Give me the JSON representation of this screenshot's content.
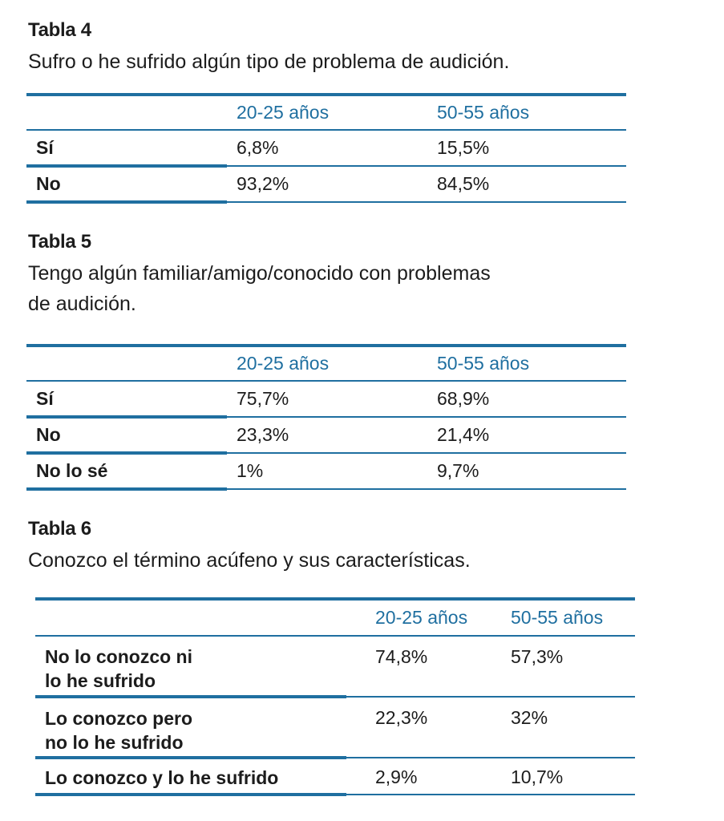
{
  "tables": [
    {
      "label": "Tabla 4",
      "caption": "Sufro o he sufrido algún tipo de problema de audición.",
      "headers": [
        "",
        "20-25 años",
        "50-55 años"
      ],
      "rows": [
        {
          "label": "Sí",
          "values": [
            "6,8%",
            "15,5%"
          ]
        },
        {
          "label": "No",
          "values": [
            "93,2%",
            "84,5%"
          ]
        }
      ]
    },
    {
      "label": "Tabla 5",
      "caption_line1": "Tengo algún familiar/amigo/conocido con problemas",
      "caption_line2": "de audición.",
      "headers": [
        "",
        "20-25 años",
        "50-55 años"
      ],
      "rows": [
        {
          "label": "Sí",
          "values": [
            "75,7%",
            "68,9%"
          ]
        },
        {
          "label": "No",
          "values": [
            "23,3%",
            "21,4%"
          ]
        },
        {
          "label": "No lo sé",
          "values": [
            "1%",
            "9,7%"
          ]
        }
      ]
    },
    {
      "label": "Tabla 6",
      "caption": "Conozco el término acúfeno y sus características.",
      "headers": [
        "",
        "20-25 años",
        "50-55 años"
      ],
      "rows": [
        {
          "label_line1": "No lo conozco ni",
          "label_line2": "lo he sufrido",
          "values": [
            "74,8%",
            "57,3%"
          ]
        },
        {
          "label_line1": "Lo conozco pero",
          "label_line2": "no lo he sufrido",
          "values": [
            "22,3%",
            "32%"
          ]
        },
        {
          "label": "Lo conozco y lo he sufrido",
          "values": [
            "2,9%",
            "10,7%"
          ]
        }
      ]
    }
  ]
}
